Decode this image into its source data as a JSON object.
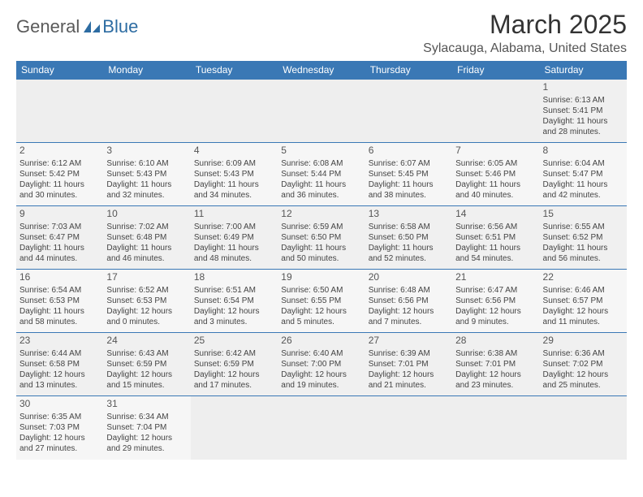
{
  "logo": {
    "part1": "General",
    "part2": "Blue"
  },
  "title": "March 2025",
  "location": "Sylacauga, Alabama, United States",
  "colors": {
    "header_bg": "#3a78b5",
    "header_text": "#ffffff",
    "cell_border": "#3a78b5",
    "row_bg_a": "#f0f0f0",
    "row_bg_b": "#f6f6f6",
    "logo_gray": "#5a5a5a",
    "logo_blue": "#2d6ca2"
  },
  "weekdays": [
    "Sunday",
    "Monday",
    "Tuesday",
    "Wednesday",
    "Thursday",
    "Friday",
    "Saturday"
  ],
  "weeks": [
    [
      null,
      null,
      null,
      null,
      null,
      null,
      {
        "d": "1",
        "sr": "Sunrise: 6:13 AM",
        "ss": "Sunset: 5:41 PM",
        "dl1": "Daylight: 11 hours",
        "dl2": "and 28 minutes."
      }
    ],
    [
      {
        "d": "2",
        "sr": "Sunrise: 6:12 AM",
        "ss": "Sunset: 5:42 PM",
        "dl1": "Daylight: 11 hours",
        "dl2": "and 30 minutes."
      },
      {
        "d": "3",
        "sr": "Sunrise: 6:10 AM",
        "ss": "Sunset: 5:43 PM",
        "dl1": "Daylight: 11 hours",
        "dl2": "and 32 minutes."
      },
      {
        "d": "4",
        "sr": "Sunrise: 6:09 AM",
        "ss": "Sunset: 5:43 PM",
        "dl1": "Daylight: 11 hours",
        "dl2": "and 34 minutes."
      },
      {
        "d": "5",
        "sr": "Sunrise: 6:08 AM",
        "ss": "Sunset: 5:44 PM",
        "dl1": "Daylight: 11 hours",
        "dl2": "and 36 minutes."
      },
      {
        "d": "6",
        "sr": "Sunrise: 6:07 AM",
        "ss": "Sunset: 5:45 PM",
        "dl1": "Daylight: 11 hours",
        "dl2": "and 38 minutes."
      },
      {
        "d": "7",
        "sr": "Sunrise: 6:05 AM",
        "ss": "Sunset: 5:46 PM",
        "dl1": "Daylight: 11 hours",
        "dl2": "and 40 minutes."
      },
      {
        "d": "8",
        "sr": "Sunrise: 6:04 AM",
        "ss": "Sunset: 5:47 PM",
        "dl1": "Daylight: 11 hours",
        "dl2": "and 42 minutes."
      }
    ],
    [
      {
        "d": "9",
        "sr": "Sunrise: 7:03 AM",
        "ss": "Sunset: 6:47 PM",
        "dl1": "Daylight: 11 hours",
        "dl2": "and 44 minutes."
      },
      {
        "d": "10",
        "sr": "Sunrise: 7:02 AM",
        "ss": "Sunset: 6:48 PM",
        "dl1": "Daylight: 11 hours",
        "dl2": "and 46 minutes."
      },
      {
        "d": "11",
        "sr": "Sunrise: 7:00 AM",
        "ss": "Sunset: 6:49 PM",
        "dl1": "Daylight: 11 hours",
        "dl2": "and 48 minutes."
      },
      {
        "d": "12",
        "sr": "Sunrise: 6:59 AM",
        "ss": "Sunset: 6:50 PM",
        "dl1": "Daylight: 11 hours",
        "dl2": "and 50 minutes."
      },
      {
        "d": "13",
        "sr": "Sunrise: 6:58 AM",
        "ss": "Sunset: 6:50 PM",
        "dl1": "Daylight: 11 hours",
        "dl2": "and 52 minutes."
      },
      {
        "d": "14",
        "sr": "Sunrise: 6:56 AM",
        "ss": "Sunset: 6:51 PM",
        "dl1": "Daylight: 11 hours",
        "dl2": "and 54 minutes."
      },
      {
        "d": "15",
        "sr": "Sunrise: 6:55 AM",
        "ss": "Sunset: 6:52 PM",
        "dl1": "Daylight: 11 hours",
        "dl2": "and 56 minutes."
      }
    ],
    [
      {
        "d": "16",
        "sr": "Sunrise: 6:54 AM",
        "ss": "Sunset: 6:53 PM",
        "dl1": "Daylight: 11 hours",
        "dl2": "and 58 minutes."
      },
      {
        "d": "17",
        "sr": "Sunrise: 6:52 AM",
        "ss": "Sunset: 6:53 PM",
        "dl1": "Daylight: 12 hours",
        "dl2": "and 0 minutes."
      },
      {
        "d": "18",
        "sr": "Sunrise: 6:51 AM",
        "ss": "Sunset: 6:54 PM",
        "dl1": "Daylight: 12 hours",
        "dl2": "and 3 minutes."
      },
      {
        "d": "19",
        "sr": "Sunrise: 6:50 AM",
        "ss": "Sunset: 6:55 PM",
        "dl1": "Daylight: 12 hours",
        "dl2": "and 5 minutes."
      },
      {
        "d": "20",
        "sr": "Sunrise: 6:48 AM",
        "ss": "Sunset: 6:56 PM",
        "dl1": "Daylight: 12 hours",
        "dl2": "and 7 minutes."
      },
      {
        "d": "21",
        "sr": "Sunrise: 6:47 AM",
        "ss": "Sunset: 6:56 PM",
        "dl1": "Daylight: 12 hours",
        "dl2": "and 9 minutes."
      },
      {
        "d": "22",
        "sr": "Sunrise: 6:46 AM",
        "ss": "Sunset: 6:57 PM",
        "dl1": "Daylight: 12 hours",
        "dl2": "and 11 minutes."
      }
    ],
    [
      {
        "d": "23",
        "sr": "Sunrise: 6:44 AM",
        "ss": "Sunset: 6:58 PM",
        "dl1": "Daylight: 12 hours",
        "dl2": "and 13 minutes."
      },
      {
        "d": "24",
        "sr": "Sunrise: 6:43 AM",
        "ss": "Sunset: 6:59 PM",
        "dl1": "Daylight: 12 hours",
        "dl2": "and 15 minutes."
      },
      {
        "d": "25",
        "sr": "Sunrise: 6:42 AM",
        "ss": "Sunset: 6:59 PM",
        "dl1": "Daylight: 12 hours",
        "dl2": "and 17 minutes."
      },
      {
        "d": "26",
        "sr": "Sunrise: 6:40 AM",
        "ss": "Sunset: 7:00 PM",
        "dl1": "Daylight: 12 hours",
        "dl2": "and 19 minutes."
      },
      {
        "d": "27",
        "sr": "Sunrise: 6:39 AM",
        "ss": "Sunset: 7:01 PM",
        "dl1": "Daylight: 12 hours",
        "dl2": "and 21 minutes."
      },
      {
        "d": "28",
        "sr": "Sunrise: 6:38 AM",
        "ss": "Sunset: 7:01 PM",
        "dl1": "Daylight: 12 hours",
        "dl2": "and 23 minutes."
      },
      {
        "d": "29",
        "sr": "Sunrise: 6:36 AM",
        "ss": "Sunset: 7:02 PM",
        "dl1": "Daylight: 12 hours",
        "dl2": "and 25 minutes."
      }
    ],
    [
      {
        "d": "30",
        "sr": "Sunrise: 6:35 AM",
        "ss": "Sunset: 7:03 PM",
        "dl1": "Daylight: 12 hours",
        "dl2": "and 27 minutes."
      },
      {
        "d": "31",
        "sr": "Sunrise: 6:34 AM",
        "ss": "Sunset: 7:04 PM",
        "dl1": "Daylight: 12 hours",
        "dl2": "and 29 minutes."
      },
      null,
      null,
      null,
      null,
      null
    ]
  ]
}
